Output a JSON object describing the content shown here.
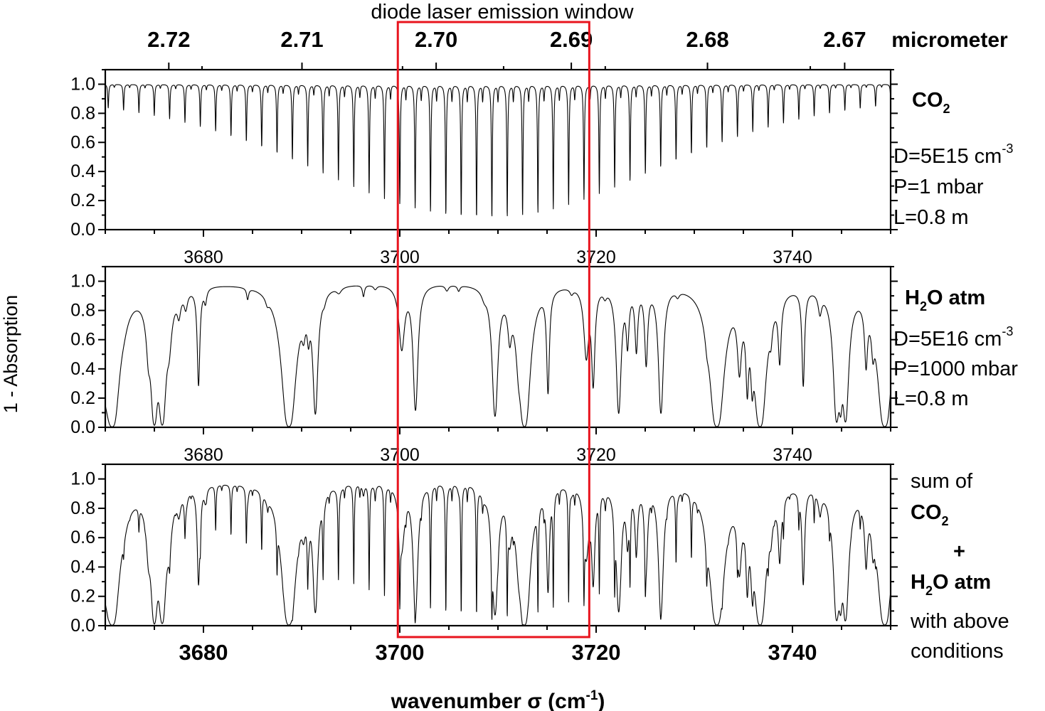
{
  "chart_data": {
    "type": "line",
    "title": "diode laser emission window",
    "xlabel": "wavenumber σ (cm⁻¹)",
    "ylabel": "1 - Absorption",
    "xlim": [
      3670,
      3750
    ],
    "ylim": [
      0,
      1.1
    ],
    "x_ticks": [
      3680,
      3700,
      3720,
      3740
    ],
    "x_tick_labels": [
      "3680",
      "3700",
      "3720",
      "3740"
    ],
    "y_ticks": [
      0.0,
      0.2,
      0.4,
      0.6,
      0.8,
      1.0
    ],
    "y_tick_labels": [
      "0.0",
      "0.2",
      "0.4",
      "0.6",
      "0.8",
      "1.0"
    ],
    "secondary_axis": {
      "unit": "micrometer",
      "ticks": [
        2.67,
        2.68,
        2.69,
        2.7,
        2.71,
        2.72
      ],
      "tick_labels": [
        "2.67",
        "2.68",
        "2.69",
        "2.70",
        "2.71",
        "2.72"
      ]
    },
    "highlight_window": {
      "x_start": 3699.8,
      "x_end": 3719.3,
      "color": "#e8141e"
    },
    "grid": false,
    "panels": [
      {
        "series": "CO2",
        "species": {
          "main": "CO",
          "sub": "2",
          "suffix": ""
        },
        "conditions": [
          "D=5E15 cm",
          "P=1 mbar",
          "L=0.8 m"
        ],
        "density_exponent": "-3",
        "lines": {
          "start": 3670.3,
          "spacing": 1.5633,
          "center": 3708.7,
          "min_depth": 0.1,
          "max_depth": 0.92,
          "decay": 24,
          "width": 0.055,
          "satellite_offset": 0.62,
          "satellite_depth": 0.12
        }
      },
      {
        "series": "H2O atm",
        "species": {
          "main": "H",
          "sub": "2",
          "suffix": "O atm"
        },
        "conditions": [
          "D=5E16 cm",
          "P=1000 mbar",
          "L=0.8 m"
        ],
        "density_exponent": "-3",
        "lines": [
          [
            3670.0,
            0.55,
            0.6
          ],
          [
            3670.7,
            1.0,
            0.35
          ],
          [
            3671.9,
            0.05,
            0.4
          ],
          [
            3674.4,
            0.35,
            0.2
          ],
          [
            3675.0,
            0.98,
            0.2
          ],
          [
            3675.8,
            0.98,
            0.22
          ],
          [
            3676.5,
            0.3,
            0.25
          ],
          [
            3677.5,
            0.15,
            0.2
          ],
          [
            3678.2,
            0.12,
            0.2
          ],
          [
            3679.5,
            0.7,
            0.12
          ],
          [
            3680.2,
            0.1,
            0.15
          ],
          [
            3684.5,
            0.08,
            0.12
          ],
          [
            3686.5,
            0.05,
            0.2
          ],
          [
            3688.7,
            1.0,
            0.35
          ],
          [
            3690.2,
            0.2,
            0.2
          ],
          [
            3690.7,
            0.25,
            0.15
          ],
          [
            3691.4,
            0.9,
            0.18
          ],
          [
            3692.3,
            0.05,
            0.2
          ],
          [
            3693.8,
            0.04,
            0.3
          ],
          [
            3696.3,
            0.08,
            0.12
          ],
          [
            3697.5,
            0.03,
            0.2
          ],
          [
            3700.2,
            0.45,
            0.3
          ],
          [
            3701.6,
            0.88,
            0.18
          ],
          [
            3704.8,
            0.04,
            0.2
          ],
          [
            3706.0,
            0.04,
            0.15
          ],
          [
            3708.6,
            0.05,
            0.3
          ],
          [
            3709.7,
            0.92,
            0.2
          ],
          [
            3711.2,
            0.3,
            0.2
          ],
          [
            3712.1,
            0.3,
            0.2
          ],
          [
            3712.7,
            1.0,
            0.28
          ],
          [
            3715.1,
            0.75,
            0.12
          ],
          [
            3717.5,
            0.04,
            0.2
          ],
          [
            3719.0,
            0.5,
            0.25
          ],
          [
            3719.7,
            0.7,
            0.15
          ],
          [
            3720.9,
            0.05,
            0.2
          ],
          [
            3722.3,
            0.9,
            0.18
          ],
          [
            3723.2,
            0.4,
            0.15
          ],
          [
            3724.1,
            0.45,
            0.15
          ],
          [
            3725.1,
            0.55,
            0.15
          ],
          [
            3726.6,
            0.9,
            0.18
          ],
          [
            3728.3,
            0.04,
            0.2
          ],
          [
            3731.3,
            0.15,
            0.2
          ],
          [
            3732.3,
            1.0,
            0.35
          ],
          [
            3734.6,
            0.55,
            0.2
          ],
          [
            3735.4,
            0.7,
            0.12
          ],
          [
            3735.9,
            0.6,
            0.12
          ],
          [
            3736.7,
            1.0,
            0.3
          ],
          [
            3737.8,
            0.2,
            0.15
          ],
          [
            3738.7,
            0.5,
            0.15
          ],
          [
            3741.1,
            0.7,
            0.12
          ],
          [
            3742.8,
            0.15,
            0.2
          ],
          [
            3744.5,
            0.95,
            0.2
          ],
          [
            3744.9,
            0.8,
            0.15
          ],
          [
            3745.4,
            0.95,
            0.2
          ],
          [
            3747.5,
            0.5,
            0.15
          ],
          [
            3748.2,
            0.3,
            0.15
          ],
          [
            3749.4,
            1.0,
            0.35
          ]
        ]
      },
      {
        "series": "sum",
        "labels": [
          "sum of",
          "+",
          "with above",
          "conditions"
        ],
        "species_co2": {
          "main": "CO",
          "sub": "2",
          "suffix": ""
        },
        "species_h2o": {
          "main": "H",
          "sub": "2",
          "suffix": "O atm"
        }
      }
    ]
  }
}
